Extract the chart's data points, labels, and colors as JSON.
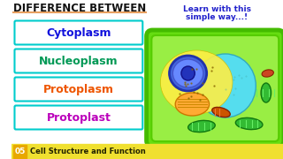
{
  "title": "DIFFERENCE BETWEEN",
  "title_color": "#111111",
  "title_underline_color": "#e8a060",
  "bg_color": "#ffffff",
  "labels": [
    "Cytoplasm",
    "Nucleoplasm",
    "Protoplasm",
    "Protoplast"
  ],
  "label_colors": [
    "#1111dd",
    "#009955",
    "#ee5500",
    "#bb00bb"
  ],
  "box_border_color": "#00cccc",
  "right_text_line1": "Learn with this",
  "right_text_line2": "simple way...!",
  "right_text_color": "#2222cc",
  "footer_num": "05",
  "footer_text": "Cell Structure and Function",
  "footer_bg": "#f0e030",
  "footer_num_bg": "#e8a800",
  "cell_outer_color": "#66dd11",
  "cell_wall_color": "#44bb00",
  "cell_inner_color": "#99ee44",
  "vacuole_color": "#55ddee",
  "cytoplasm_color": "#ffee44",
  "nucleus_color": "#3355cc",
  "nucleolus_color": "#8899ff",
  "chloroplast_color": "#22aa22",
  "mito_color": "#cc5500",
  "orange_body_color": "#ffaa33"
}
